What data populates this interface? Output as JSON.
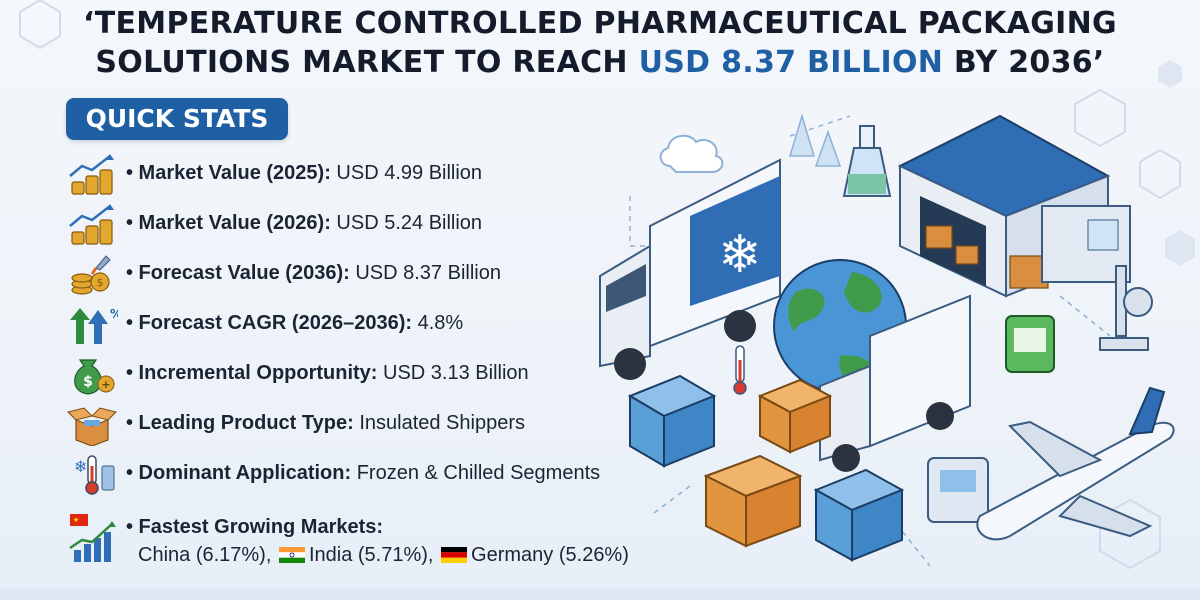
{
  "title": {
    "line1": "‘TEMPERATURE CONTROLLED PHARMACEUTICAL PACKAGING",
    "line2_pre": "SOLUTIONS MARKET TO REACH ",
    "line2_highlight": "USD 8.37 BILLION",
    "line2_post": " BY 2036’"
  },
  "quick_stats_label": "QUICK STATS",
  "stats": [
    {
      "icon": "rising-coins-icon",
      "label": "• Market Value (2025):",
      "value": " USD 4.99 Billion"
    },
    {
      "icon": "rising-coins-icon",
      "label": "• Market Value (2026):",
      "value": " USD 5.24 Billion"
    },
    {
      "icon": "rocket-coins-icon",
      "label": "• Forecast Value (2036):",
      "value": " USD 8.37 Billion"
    },
    {
      "icon": "growth-arrows-icon",
      "label": "• Forecast CAGR (2026–2036):",
      "value": " 4.8%"
    },
    {
      "icon": "money-bag-icon",
      "label": "• Incremental Opportunity:",
      "value": " USD 3.13 Billion"
    },
    {
      "icon": "open-box-icon",
      "label": "• Leading Product Type:",
      "value": " Insulated Shippers"
    },
    {
      "icon": "thermometer-snowflake-icon",
      "label": "• Dominant Application:",
      "value": " Frozen & Chilled Segments"
    }
  ],
  "fastest": {
    "icon": "growth-chart-flag-icon",
    "label": "• Fastest Growing Markets:",
    "china": "China (6.17%),",
    "india": "India (5.71%),",
    "germany": "Germany (5.26%)"
  },
  "colors": {
    "accent": "#1f5fa4",
    "title": "#141c2b",
    "gold": "#e2a72e",
    "green": "#2e8b3e"
  }
}
